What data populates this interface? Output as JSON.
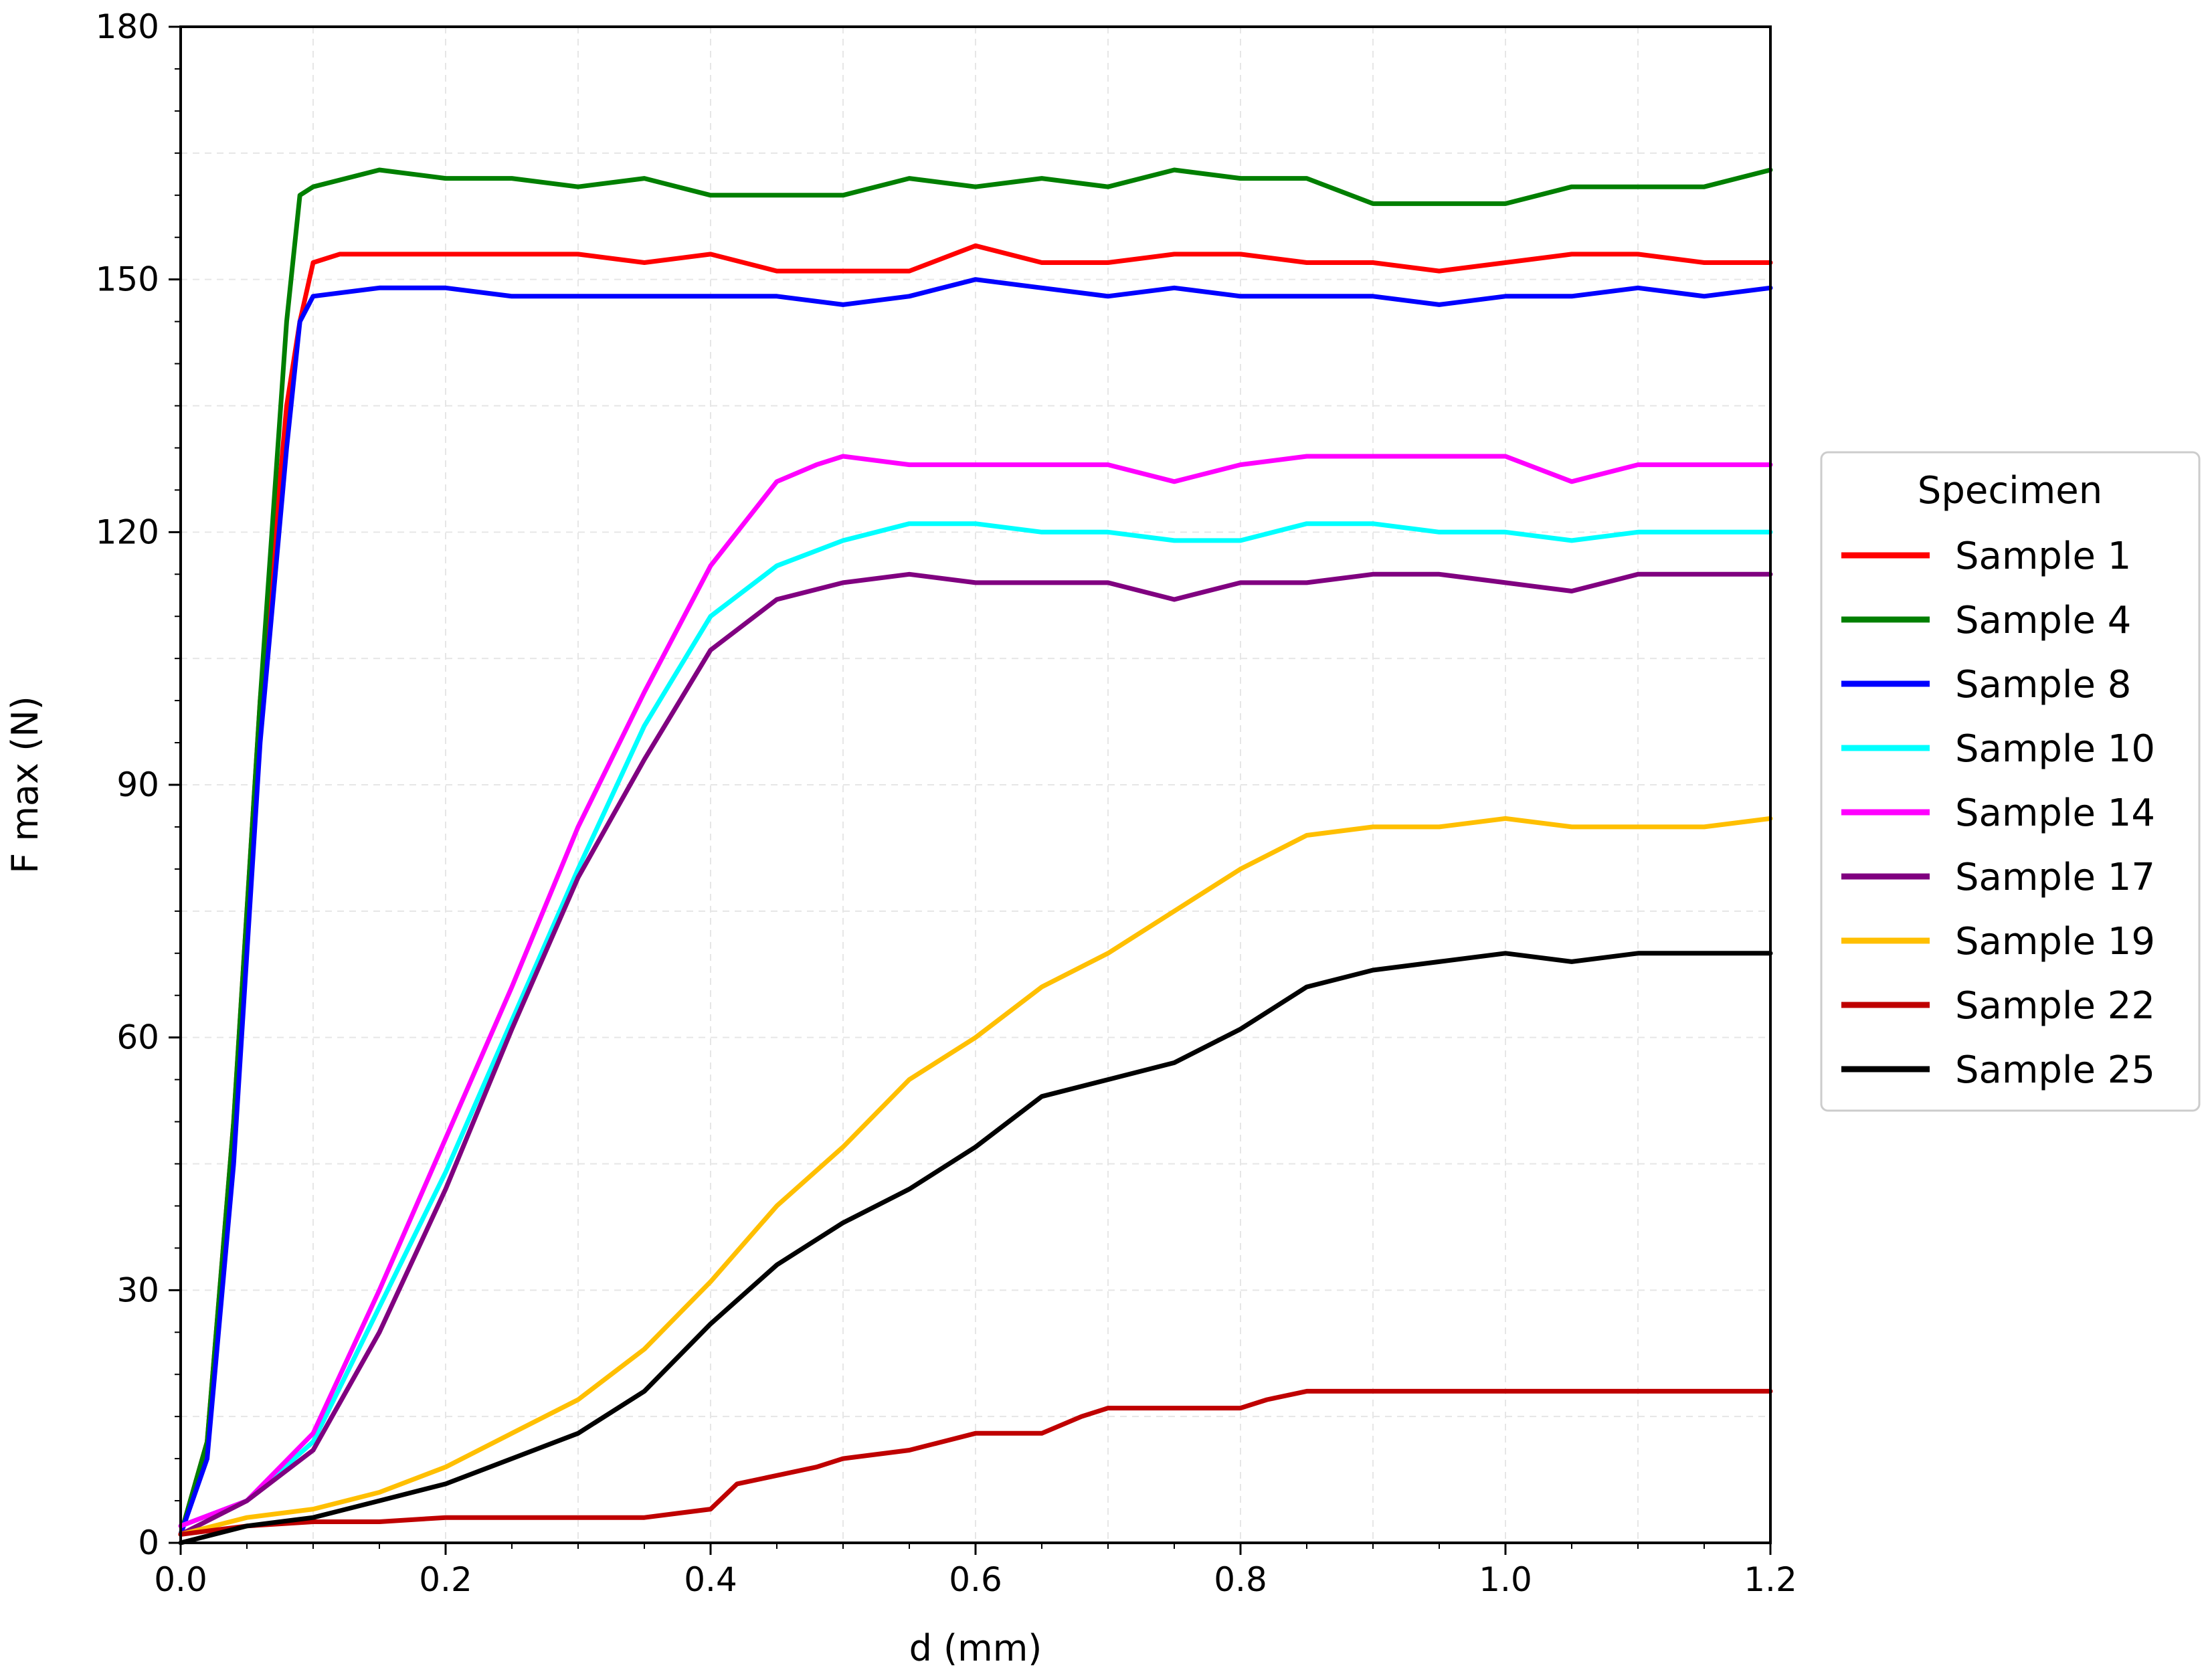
{
  "chart_data": {
    "type": "line",
    "title": "",
    "xlabel": "d (mm)",
    "ylabel": "F max (N)",
    "xlim": [
      0,
      1.2
    ],
    "ylim": [
      0,
      180
    ],
    "xticks": [
      0.0,
      0.2,
      0.4,
      0.6,
      0.8,
      1.0,
      1.2
    ],
    "xtick_labels": [
      "0.0",
      "0.2",
      "0.4",
      "0.6",
      "0.8",
      "1.0",
      "1.2"
    ],
    "yticks": [
      0,
      30,
      60,
      90,
      120,
      150,
      180
    ],
    "ytick_labels": [
      "0",
      "30",
      "60",
      "90",
      "120",
      "150",
      "180"
    ],
    "grid": true,
    "legend": {
      "title": "Specimen",
      "position": "outside-right"
    },
    "series": [
      {
        "name": "Sample 1",
        "color": "#ff0000",
        "x": [
          0,
          0.02,
          0.04,
          0.06,
          0.08,
          0.09,
          0.1,
          0.12,
          0.15,
          0.2,
          0.25,
          0.3,
          0.35,
          0.4,
          0.45,
          0.5,
          0.55,
          0.6,
          0.65,
          0.7,
          0.75,
          0.8,
          0.85,
          0.9,
          0.95,
          1.0,
          1.05,
          1.1,
          1.15,
          1.2
        ],
        "y": [
          1,
          12,
          50,
          100,
          135,
          145,
          152,
          153,
          153,
          153,
          153,
          153,
          152,
          153,
          151,
          151,
          151,
          154,
          152,
          152,
          153,
          153,
          152,
          152,
          151,
          152,
          153,
          153,
          152,
          152
        ]
      },
      {
        "name": "Sample 4",
        "color": "#007f00",
        "x": [
          0,
          0.02,
          0.04,
          0.06,
          0.08,
          0.09,
          0.1,
          0.15,
          0.2,
          0.25,
          0.3,
          0.35,
          0.4,
          0.45,
          0.5,
          0.55,
          0.6,
          0.65,
          0.7,
          0.75,
          0.8,
          0.85,
          0.9,
          0.95,
          1.0,
          1.05,
          1.1,
          1.15,
          1.2
        ],
        "y": [
          1,
          12,
          50,
          100,
          145,
          160,
          161,
          163,
          162,
          162,
          161,
          162,
          160,
          160,
          160,
          162,
          161,
          162,
          161,
          163,
          162,
          162,
          159,
          159,
          159,
          161,
          161,
          161,
          163
        ]
      },
      {
        "name": "Sample 8",
        "color": "#0000ff",
        "x": [
          0,
          0.02,
          0.04,
          0.06,
          0.08,
          0.09,
          0.1,
          0.15,
          0.2,
          0.25,
          0.3,
          0.35,
          0.4,
          0.45,
          0.5,
          0.55,
          0.6,
          0.65,
          0.7,
          0.75,
          0.8,
          0.85,
          0.9,
          0.95,
          1.0,
          1.05,
          1.1,
          1.15,
          1.2
        ],
        "y": [
          1,
          10,
          45,
          95,
          130,
          145,
          148,
          149,
          149,
          148,
          148,
          148,
          148,
          148,
          147,
          148,
          150,
          149,
          148,
          149,
          148,
          148,
          148,
          147,
          148,
          148,
          149,
          148,
          149
        ]
      },
      {
        "name": "Sample 10",
        "color": "#00ffff",
        "x": [
          0,
          0.05,
          0.1,
          0.15,
          0.2,
          0.25,
          0.3,
          0.35,
          0.4,
          0.45,
          0.5,
          0.55,
          0.6,
          0.65,
          0.7,
          0.75,
          0.8,
          0.85,
          0.9,
          0.95,
          1.0,
          1.05,
          1.1,
          1.15,
          1.2
        ],
        "y": [
          2,
          5,
          12,
          28,
          44,
          62,
          80,
          97,
          110,
          116,
          119,
          121,
          121,
          120,
          120,
          119,
          119,
          121,
          121,
          120,
          120,
          119,
          120,
          120,
          120
        ]
      },
      {
        "name": "Sample 14",
        "color": "#ff00ff",
        "x": [
          0,
          0.05,
          0.1,
          0.15,
          0.2,
          0.25,
          0.3,
          0.35,
          0.4,
          0.45,
          0.48,
          0.5,
          0.55,
          0.6,
          0.65,
          0.7,
          0.75,
          0.8,
          0.85,
          0.9,
          0.95,
          1.0,
          1.05,
          1.1,
          1.15,
          1.2
        ],
        "y": [
          2,
          5,
          13,
          30,
          48,
          66,
          85,
          101,
          116,
          126,
          128,
          129,
          128,
          128,
          128,
          128,
          126,
          128,
          129,
          129,
          129,
          129,
          126,
          128,
          128,
          128
        ]
      },
      {
        "name": "Sample 17",
        "color": "#800080",
        "x": [
          0,
          0.05,
          0.1,
          0.15,
          0.2,
          0.25,
          0.3,
          0.35,
          0.4,
          0.45,
          0.5,
          0.55,
          0.6,
          0.65,
          0.7,
          0.75,
          0.8,
          0.85,
          0.9,
          0.95,
          1.0,
          1.05,
          1.1,
          1.15,
          1.2
        ],
        "y": [
          1,
          5,
          11,
          25,
          42,
          61,
          79,
          93,
          106,
          112,
          114,
          115,
          114,
          114,
          114,
          112,
          114,
          114,
          115,
          115,
          114,
          113,
          115,
          115,
          115
        ]
      },
      {
        "name": "Sample 19",
        "color": "#ffbf00",
        "x": [
          0,
          0.05,
          0.1,
          0.15,
          0.2,
          0.25,
          0.3,
          0.35,
          0.4,
          0.45,
          0.5,
          0.55,
          0.6,
          0.65,
          0.7,
          0.75,
          0.8,
          0.85,
          0.9,
          0.95,
          1.0,
          1.05,
          1.1,
          1.15,
          1.2
        ],
        "y": [
          1,
          3,
          4,
          6,
          9,
          13,
          17,
          23,
          31,
          40,
          47,
          55,
          60,
          66,
          70,
          75,
          80,
          84,
          85,
          85,
          86,
          85,
          85,
          85,
          86
        ]
      },
      {
        "name": "Sample 22",
        "color": "#bf0000",
        "x": [
          0,
          0.05,
          0.1,
          0.15,
          0.2,
          0.25,
          0.3,
          0.35,
          0.4,
          0.42,
          0.45,
          0.48,
          0.5,
          0.55,
          0.6,
          0.65,
          0.68,
          0.7,
          0.75,
          0.8,
          0.82,
          0.85,
          0.9,
          0.95,
          1.0,
          1.05,
          1.1,
          1.15,
          1.2
        ],
        "y": [
          1,
          2,
          2.5,
          2.5,
          3,
          3,
          3,
          3,
          4,
          7,
          8,
          9,
          10,
          11,
          13,
          13,
          15,
          16,
          16,
          16,
          17,
          18,
          18,
          18,
          18,
          18,
          18,
          18,
          18
        ]
      },
      {
        "name": "Sample 25",
        "color": "#000000",
        "x": [
          0,
          0.05,
          0.1,
          0.15,
          0.2,
          0.25,
          0.3,
          0.35,
          0.4,
          0.45,
          0.5,
          0.55,
          0.6,
          0.65,
          0.7,
          0.75,
          0.8,
          0.85,
          0.9,
          0.95,
          1.0,
          1.05,
          1.1,
          1.15,
          1.2
        ],
        "y": [
          0,
          2,
          3,
          5,
          7,
          10,
          13,
          18,
          26,
          33,
          38,
          42,
          47,
          53,
          55,
          57,
          61,
          66,
          68,
          69,
          70,
          69,
          70,
          70,
          70
        ]
      }
    ]
  }
}
